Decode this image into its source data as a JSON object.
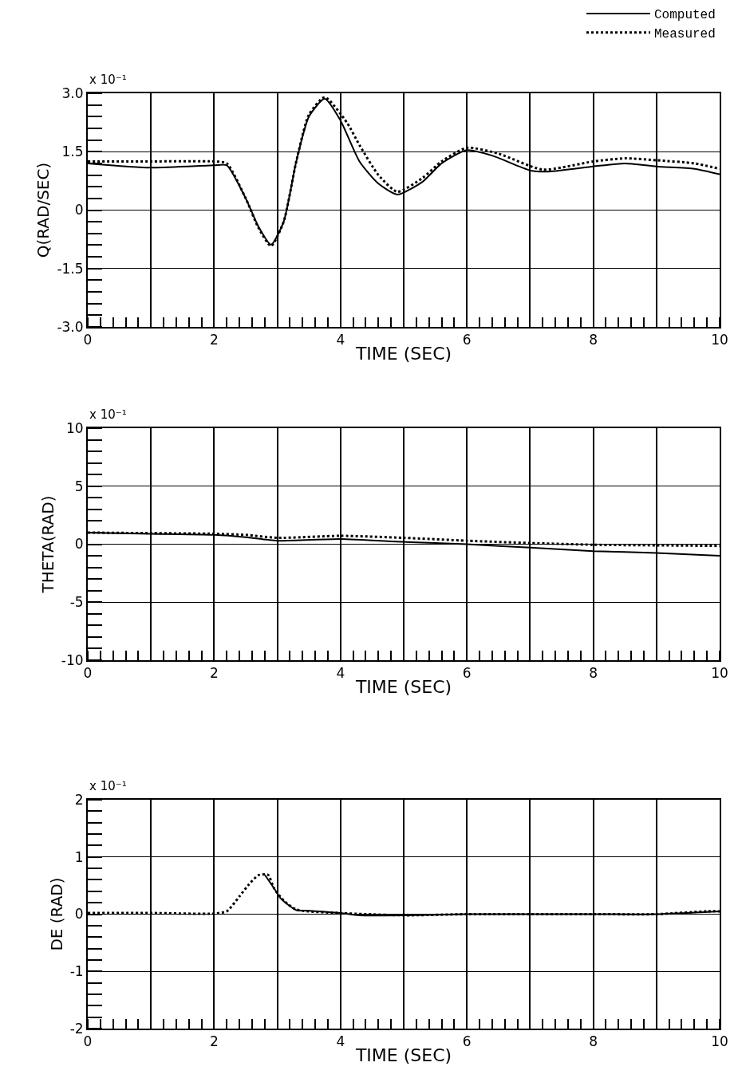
{
  "chart_data": [
    {
      "type": "line",
      "xlabel": "TIME (SEC)",
      "ylabel": "Q(RAD/SEC)",
      "annotations": [
        "x 10⁻¹"
      ],
      "xlim": [
        0,
        10
      ],
      "ylim": [
        -3,
        3
      ],
      "xticks": [
        0,
        {
          "value": 1,
          "label": null
        },
        2,
        {
          "value": 3,
          "label": null
        },
        4,
        {
          "value": 5,
          "label": null
        },
        6,
        {
          "value": 7,
          "label": null
        },
        8,
        {
          "value": 9,
          "label": null
        },
        10
      ],
      "yticks": [
        {
          "value": -3,
          "label": "-3.0"
        },
        -1.5,
        0,
        1.5,
        {
          "value": 3,
          "label": "3.0"
        }
      ],
      "grid": true,
      "legend": "top right",
      "series": [
        {
          "name": "Computed",
          "color": "#000000",
          "line_style": "solid",
          "x": [
            0,
            1,
            2,
            2.2,
            2.5,
            2.7,
            2.9,
            3.1,
            3.3,
            3.5,
            3.75,
            4,
            4.3,
            4.6,
            4.9,
            5.3,
            5.6,
            6,
            6.4,
            7,
            7.3,
            8,
            8.5,
            9,
            9.6,
            10
          ],
          "values": [
            1.2,
            1.09,
            1.15,
            1.15,
            0.3,
            -0.42,
            -0.89,
            -0.3,
            1.25,
            2.4,
            2.86,
            2.3,
            1.25,
            0.68,
            0.4,
            0.73,
            1.2,
            1.54,
            1.4,
            1.02,
            0.99,
            1.12,
            1.2,
            1.12,
            1.06,
            0.92
          ]
        },
        {
          "name": "Measured",
          "color": "#000000",
          "line_style": "dotted",
          "x": [
            0,
            1,
            2,
            2.2,
            2.5,
            2.7,
            2.9,
            3.1,
            3.3,
            3.5,
            3.75,
            4.1,
            4.3,
            4.6,
            4.9,
            5.3,
            5.6,
            6,
            6.5,
            7.2,
            8,
            8.5,
            9,
            9.6,
            10
          ],
          "values": [
            1.25,
            1.25,
            1.25,
            1.2,
            0.3,
            -0.45,
            -0.92,
            -0.3,
            1.25,
            2.45,
            2.9,
            2.25,
            1.67,
            0.9,
            0.47,
            0.83,
            1.25,
            1.6,
            1.45,
            1.04,
            1.25,
            1.33,
            1.28,
            1.2,
            1.06
          ]
        }
      ]
    },
    {
      "type": "line",
      "xlabel": "TIME (SEC)",
      "ylabel": "THETA(RAD)",
      "annotations": [
        "x 10⁻¹"
      ],
      "xlim": [
        0,
        10
      ],
      "ylim": [
        -10,
        10
      ],
      "xticks": [
        0,
        {
          "value": 1,
          "label": null
        },
        2,
        {
          "value": 3,
          "label": null
        },
        4,
        {
          "value": 5,
          "label": null
        },
        6,
        {
          "value": 7,
          "label": null
        },
        8,
        {
          "value": 9,
          "label": null
        },
        10
      ],
      "yticks": [
        -10,
        -5,
        0,
        5,
        10
      ],
      "grid": true,
      "series": [
        {
          "color": "#000000",
          "line_style": "solid",
          "x": [
            0,
            1,
            2,
            2.5,
            3,
            4,
            5,
            6,
            7,
            8,
            9,
            10
          ],
          "values": [
            1.0,
            0.9,
            0.8,
            0.6,
            0.3,
            0.45,
            0.2,
            0.0,
            -0.3,
            -0.6,
            -0.75,
            -1.0
          ]
        },
        {
          "color": "#000000",
          "line_style": "dotted",
          "x": [
            0,
            1,
            2,
            2.5,
            3,
            4,
            5,
            6,
            7,
            8,
            9,
            10
          ],
          "values": [
            1.0,
            0.95,
            0.9,
            0.8,
            0.55,
            0.72,
            0.55,
            0.3,
            0.1,
            -0.05,
            -0.1,
            -0.15
          ]
        }
      ]
    },
    {
      "type": "line",
      "xlabel": "TIME (SEC)",
      "ylabel": "DE (RAD)",
      "annotations": [
        "x 10⁻¹"
      ],
      "xlim": [
        0,
        10
      ],
      "ylim": [
        -2,
        2
      ],
      "xticks": [
        0,
        {
          "value": 1,
          "label": null
        },
        2,
        {
          "value": 3,
          "label": null
        },
        4,
        {
          "value": 5,
          "label": null
        },
        6,
        {
          "value": 7,
          "label": null
        },
        8,
        {
          "value": 9,
          "label": null
        },
        10
      ],
      "yticks": [
        -2,
        -1,
        0,
        1,
        2
      ],
      "grid": true,
      "series": [
        {
          "color": "#000000",
          "line_style": "solid",
          "x": [
            2.8,
            2.95,
            3.05,
            3.2,
            3.3,
            3.5,
            4,
            4.3,
            5,
            6,
            7,
            8,
            9,
            9.8,
            10
          ],
          "values": [
            0.69,
            0.45,
            0.28,
            0.14,
            0.07,
            0.06,
            0.02,
            -0.02,
            -0.02,
            0,
            0,
            0,
            0,
            0.04,
            0.05
          ]
        },
        {
          "color": "#000000",
          "line_style": "dotted",
          "x": [
            0,
            1,
            2,
            2.2,
            2.4,
            2.55,
            2.7,
            2.85,
            2.95,
            3.1,
            3.3,
            4,
            5,
            6,
            7,
            8,
            9,
            9.8,
            10
          ],
          "values": [
            0.02,
            0.02,
            0.01,
            0.05,
            0.31,
            0.52,
            0.68,
            0.69,
            0.45,
            0.24,
            0.08,
            0.02,
            -0.02,
            0,
            0,
            0,
            0,
            0.05,
            0.05
          ]
        }
      ]
    }
  ]
}
